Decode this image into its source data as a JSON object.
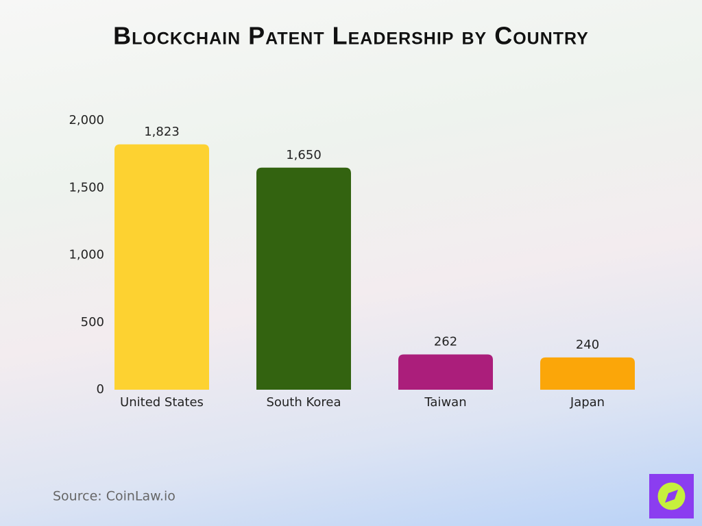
{
  "chart_data": {
    "type": "bar",
    "title": "Blockchain Patent Leadership by Country",
    "categories": [
      "United States",
      "South Korea",
      "Taiwan",
      "Japan"
    ],
    "values": [
      1823,
      1650,
      262,
      240
    ],
    "value_labels": [
      "1,823",
      "1,650",
      "262",
      "240"
    ],
    "colors": [
      "#fdd231",
      "#336310",
      "#ab1e7b",
      "#fba609"
    ],
    "ylim": [
      0,
      2000
    ],
    "yticks": [
      0,
      500,
      {
        "value": 1000,
        "label": "1,000"
      },
      {
        "value": 1500,
        "label": "1,500"
      },
      {
        "value": 2000,
        "label": "2,000"
      }
    ],
    "grid": false,
    "source": "Source: CoinLaw.io"
  }
}
